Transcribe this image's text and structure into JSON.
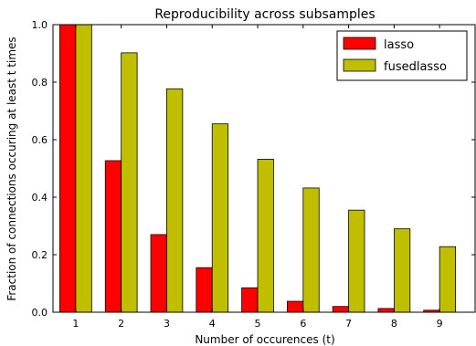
{
  "chart_data": {
    "type": "bar",
    "title": "Reproducibility across subsamples",
    "xlabel": "Number of occurences (t)",
    "ylabel": "Fraction of connections occuring at least t times",
    "categories": [
      "1",
      "2",
      "3",
      "4",
      "5",
      "6",
      "7",
      "8",
      "9"
    ],
    "series": [
      {
        "name": "lasso",
        "color": "#ff0000",
        "values": [
          1.0,
          0.527,
          0.27,
          0.155,
          0.085,
          0.038,
          0.02,
          0.013,
          0.007
        ]
      },
      {
        "name": "fusedlasso",
        "color": "#bfbf00",
        "values": [
          1.0,
          0.902,
          0.777,
          0.655,
          0.532,
          0.432,
          0.355,
          0.29,
          0.228
        ]
      }
    ],
    "ylim": [
      0.0,
      1.0
    ],
    "yticks": [
      "0.0",
      "0.2",
      "0.4",
      "0.6",
      "0.8",
      "1.0"
    ],
    "grid": false,
    "legend_position": "top-right"
  }
}
